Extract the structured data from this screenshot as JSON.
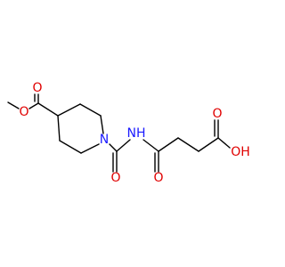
{
  "atoms": [
    {
      "label": "O"
    },
    {
      "label": "O"
    },
    {
      "label": "N"
    },
    {
      "label": "O"
    },
    {
      "label": "NH"
    },
    {
      "label": "O"
    },
    {
      "label": "O"
    },
    {
      "label": "OH"
    }
  ]
}
